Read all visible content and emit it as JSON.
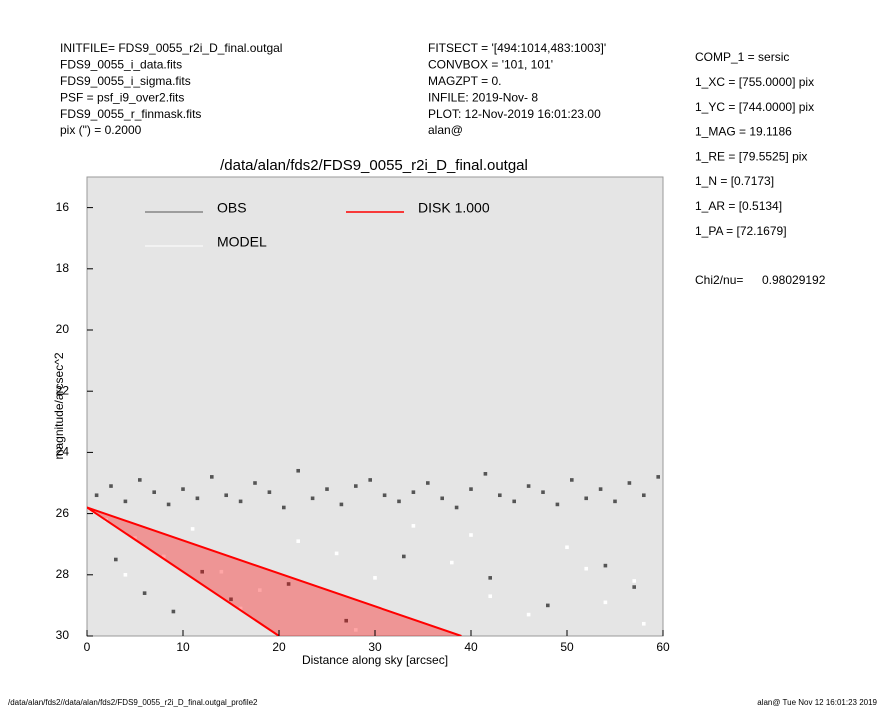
{
  "header": {
    "left": [
      "INITFILE= FDS9_0055_r2i_D_final.outgal",
      "FDS9_0055_i_data.fits",
      "FDS9_0055_i_sigma.fits",
      "PSF     = psf_i9_over2.fits",
      "FDS9_0055_r_finmask.fits",
      "pix (\") =  0.2000"
    ],
    "middle": [
      "FITSECT = '[494:1014,483:1003]'",
      "CONVBOX = '101, 101'",
      "MAGZPT  =              0.",
      "INFILE: 2019-Nov- 8",
      "PLOT: 12-Nov-2019 16:01:23.00",
      "alan@"
    ],
    "right": [
      "COMP_1  = sersic",
      "1_XC    = [755.0000] pix",
      "1_YC    = [744.0000] pix",
      "1_MAG   = 19.1186",
      "1_RE    = [79.5525] pix",
      "1_N     = [0.7173]",
      "1_AR    = [0.5134]",
      "1_PA    = [72.1679]"
    ],
    "chi2_label": "Chi2/nu=",
    "chi2_value": "0.98029192"
  },
  "chart_data": {
    "type": "scatter",
    "title": "/data/alan/fds2/FDS9_0055_r2i_D_final.outgal",
    "x_label": "Distance along sky [arcsec]",
    "y_label": "magnitude/arcsec^2",
    "xlim": [
      0,
      60
    ],
    "ylim": [
      30,
      15
    ],
    "xticks": [
      0,
      10,
      20,
      30,
      40,
      50,
      60
    ],
    "yticks": [
      16,
      18,
      20,
      22,
      24,
      26,
      28,
      30
    ],
    "background": "#e5e5e5",
    "series": [
      {
        "name": "OBS",
        "color": "#555555",
        "x": [
          1,
          2.5,
          4,
          5.5,
          7,
          8.5,
          10,
          11.5,
          13,
          14.5,
          16,
          17.5,
          19,
          20.5,
          22,
          23.5,
          25,
          26.5,
          28,
          29.5,
          31,
          32.5,
          34,
          35.5,
          37,
          38.5,
          40,
          41.5,
          43,
          44.5,
          46,
          47.5,
          49,
          50.5,
          52,
          53.5,
          55,
          56.5,
          58,
          59.5,
          3,
          6,
          9,
          12,
          15,
          21,
          27,
          33,
          42,
          48,
          54,
          57
        ],
        "values": [
          25.4,
          25.1,
          25.6,
          24.9,
          25.3,
          25.7,
          25.2,
          25.5,
          24.8,
          25.4,
          25.6,
          25.0,
          25.3,
          25.8,
          24.6,
          25.5,
          25.2,
          25.7,
          25.1,
          24.9,
          25.4,
          25.6,
          25.3,
          25.0,
          25.5,
          25.8,
          25.2,
          24.7,
          25.4,
          25.6,
          25.1,
          25.3,
          25.7,
          24.9,
          25.5,
          25.2,
          25.6,
          25.0,
          25.4,
          24.8,
          27.5,
          28.6,
          29.2,
          27.9,
          28.8,
          28.3,
          29.5,
          27.4,
          28.1,
          29.0,
          27.7,
          28.4
        ]
      },
      {
        "name": "MODEL",
        "color": "#ffffff",
        "x": [
          2,
          5,
          8,
          11,
          14,
          18,
          22,
          26,
          30,
          34,
          38,
          42,
          46,
          50,
          54,
          58,
          4,
          16,
          28,
          40,
          52,
          57
        ],
        "values": [
          26.2,
          26.8,
          27.4,
          26.5,
          27.9,
          28.5,
          26.9,
          27.3,
          28.1,
          26.4,
          27.6,
          28.7,
          29.3,
          27.1,
          28.9,
          29.6,
          28.0,
          29.1,
          29.8,
          26.7,
          27.8,
          28.2
        ]
      },
      {
        "name": "DISK  1.000",
        "color": "#ff0000",
        "x": [
          0,
          39
        ],
        "values": [
          25.8,
          30
        ],
        "lower_x": [
          0,
          20
        ],
        "lower_values": [
          25.8,
          30
        ]
      }
    ]
  },
  "footer": {
    "left": "/data/alan/fds2//data/alan/fds2/FDS9_0055_r2i_D_final.outgal_profile2",
    "right": "alan@  Tue Nov 12 16:01:23 2019"
  }
}
